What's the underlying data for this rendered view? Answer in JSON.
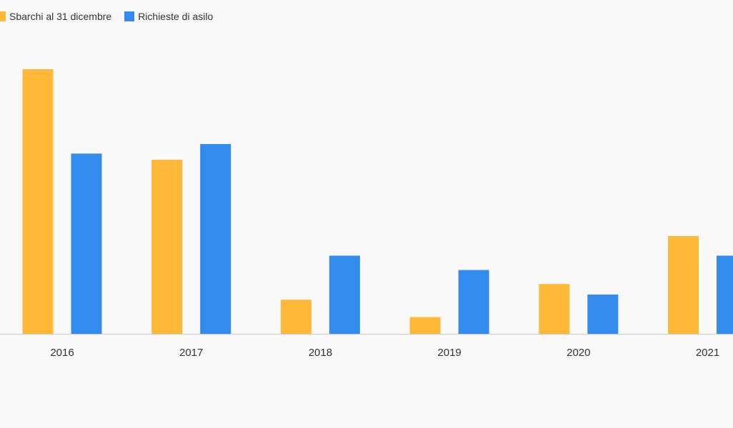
{
  "legend": {
    "items": [
      {
        "label": "Sbarchi al 31 dicembre",
        "color": "#FFB838"
      },
      {
        "label": "Richieste di asilo",
        "color": "#338BEE"
      }
    ]
  },
  "chart_data": {
    "type": "bar",
    "categories": [
      "2016",
      "2017",
      "2018",
      "2019",
      "2020",
      "2021"
    ],
    "series": [
      {
        "name": "Sbarchi al 31 dicembre",
        "color": "#FFB838",
        "values": [
          181436,
          119369,
          23370,
          11471,
          34154,
          67040
        ]
      },
      {
        "name": "Richieste di asilo",
        "color": "#338BEE",
        "values": [
          123600,
          130119,
          53596,
          43783,
          26963,
          53609
        ]
      }
    ],
    "ylim": [
      0,
      200000
    ],
    "grid": false,
    "legend_position": "top-left"
  }
}
